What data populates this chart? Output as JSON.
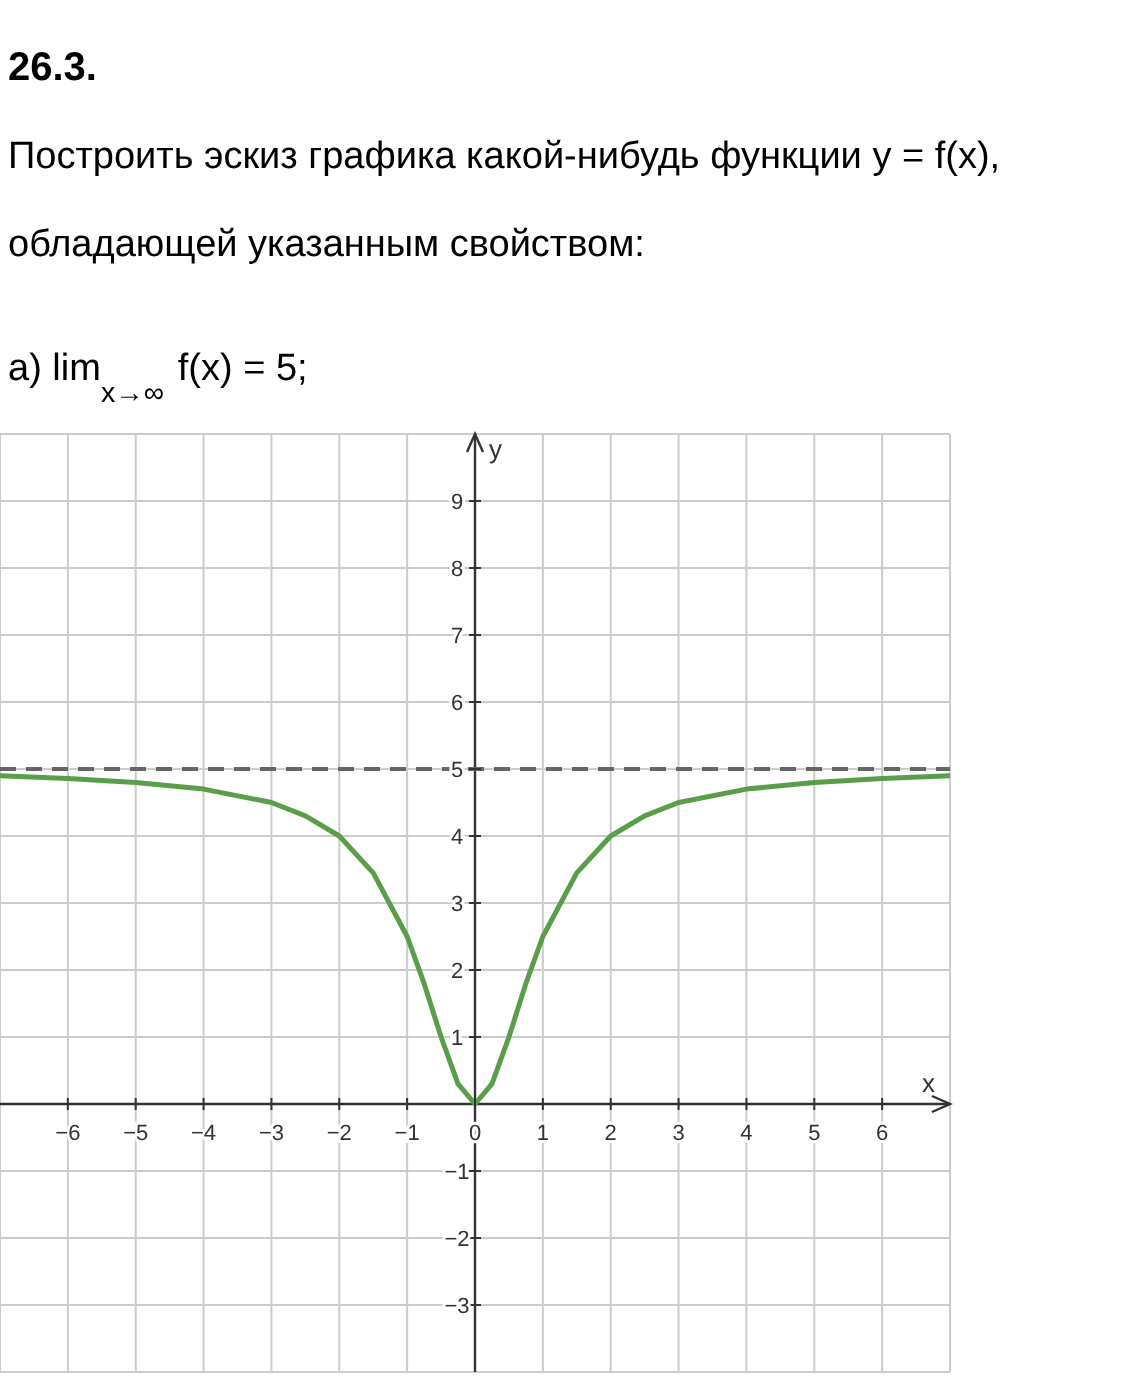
{
  "chart_data": {
    "type": "line",
    "title": "26.3.",
    "subtitle": "Построить эскиз графика какой-нибудь функции y = f(x),\nобладающей указанным свойством:",
    "annotations": [
      "а) lim$_{x→∞}$ f(x) = 5;"
    ],
    "xlabel": "x",
    "ylabel": "y",
    "x": [
      -7,
      -6,
      -5,
      -4,
      -3,
      -2.5,
      -2,
      -1.5,
      -1,
      -0.75,
      -0.5,
      -0.25,
      0,
      0.25,
      0.5,
      0.75,
      1,
      1.5,
      2,
      2.5,
      3,
      4,
      5,
      6,
      7
    ],
    "series": [
      {
        "color": "#5a9e4b",
        "values": [
          4.9,
          4.86,
          4.8,
          4.7,
          4.5,
          4.3,
          4.0,
          3.45,
          2.5,
          1.8,
          1.0,
          0.3,
          0,
          0.3,
          1.0,
          1.8,
          2.5,
          3.45,
          4.0,
          4.3,
          4.5,
          4.7,
          4.8,
          4.86,
          4.9
        ]
      }
    ],
    "xlim": [
      -7,
      7
    ],
    "ylim": [
      -4,
      10
    ],
    "xticks": [
      -6,
      -5,
      -4,
      -3,
      -2,
      -1,
      0,
      1,
      2,
      3,
      4,
      5,
      6
    ],
    "yticks": [
      -3,
      -2,
      -1,
      1,
      2,
      3,
      4,
      5,
      6,
      7,
      8,
      9
    ],
    "grid": true,
    "marker": "none",
    "line_style": "solid",
    "ref_lines": [
      {
        "axis": "y",
        "value": 5,
        "color": "#666666",
        "line_style": "dashed"
      }
    ]
  }
}
